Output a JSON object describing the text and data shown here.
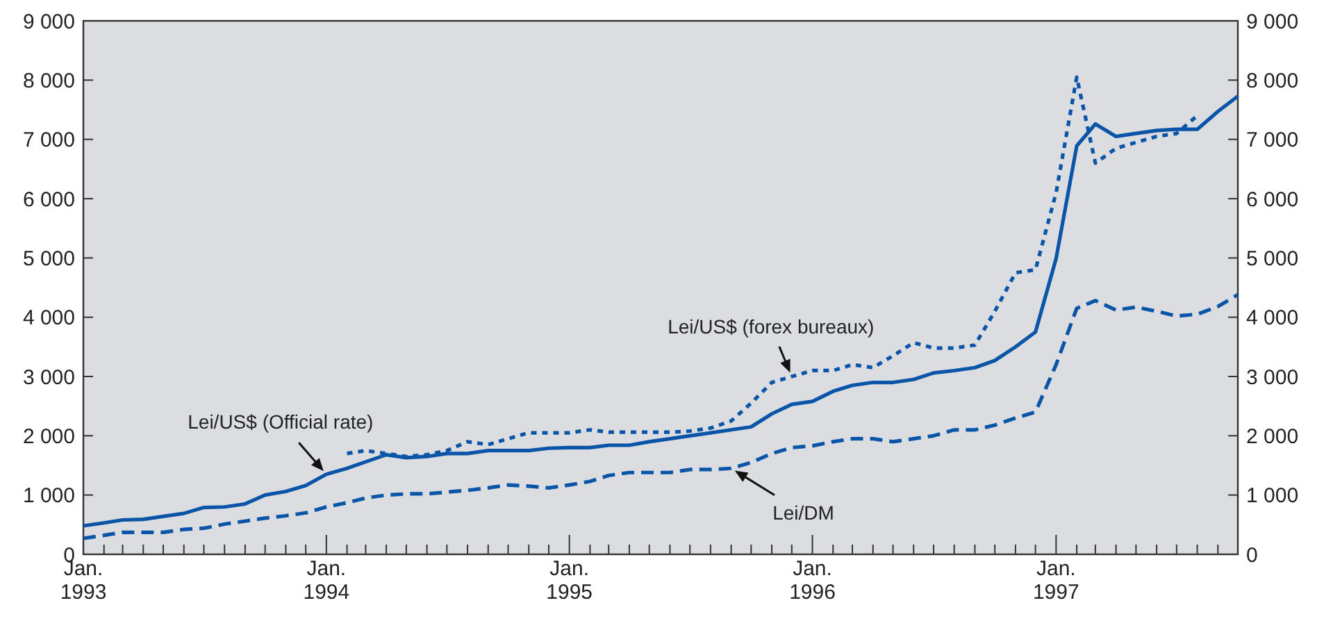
{
  "chart_data": {
    "type": "line",
    "x": [
      "1993-01",
      "1993-02",
      "1993-03",
      "1993-04",
      "1993-05",
      "1993-06",
      "1993-07",
      "1993-08",
      "1993-09",
      "1993-10",
      "1993-11",
      "1993-12",
      "1994-01",
      "1994-02",
      "1994-03",
      "1994-04",
      "1994-05",
      "1994-06",
      "1994-07",
      "1994-08",
      "1994-09",
      "1994-10",
      "1994-11",
      "1994-12",
      "1995-01",
      "1995-02",
      "1995-03",
      "1995-04",
      "1995-05",
      "1995-06",
      "1995-07",
      "1995-08",
      "1995-09",
      "1995-10",
      "1995-11",
      "1995-12",
      "1996-01",
      "1996-02",
      "1996-03",
      "1996-04",
      "1996-05",
      "1996-06",
      "1996-07",
      "1996-08",
      "1996-09",
      "1996-10",
      "1996-11",
      "1996-12",
      "1997-01",
      "1997-02",
      "1997-03",
      "1997-04",
      "1997-05",
      "1997-06",
      "1997-07",
      "1997-08",
      "1997-09",
      "1997-10"
    ],
    "series": [
      {
        "color": "#0a55a8",
        "line_style": "solid",
        "values": [
          480,
          530,
          580,
          590,
          640,
          690,
          790,
          800,
          850,
          1000,
          1060,
          1160,
          1350,
          1450,
          1560,
          1680,
          1630,
          1650,
          1700,
          1700,
          1750,
          1750,
          1750,
          1790,
          1800,
          1800,
          1840,
          1840,
          1900,
          1950,
          2000,
          2050,
          2100,
          2150,
          2370,
          2530,
          2580,
          2750,
          2850,
          2900,
          2900,
          2950,
          3060,
          3100,
          3150,
          3270,
          3500,
          3750,
          4990,
          6890,
          7260,
          7050,
          7100,
          7150,
          7170,
          7170,
          7470,
          7730
        ]
      },
      {
        "color": "#0a55a8",
        "line_style": "dotted",
        "values": [
          null,
          null,
          null,
          null,
          null,
          null,
          null,
          null,
          null,
          null,
          null,
          null,
          null,
          1700,
          1750,
          1700,
          1650,
          1680,
          1750,
          1900,
          1850,
          1950,
          2050,
          2050,
          2050,
          2100,
          2060,
          2060,
          2060,
          2060,
          2080,
          2130,
          2250,
          2550,
          2900,
          3000,
          3100,
          3100,
          3200,
          3150,
          3350,
          3570,
          3480,
          3480,
          3530,
          4100,
          4750,
          4800,
          6100,
          8050,
          6600,
          6850,
          6950,
          7050,
          7100,
          7400,
          null,
          null
        ]
      },
      {
        "color": "#0a55a8",
        "line_style": "dashed",
        "values": [
          270,
          320,
          370,
          370,
          370,
          420,
          440,
          510,
          560,
          610,
          650,
          700,
          800,
          870,
          950,
          1000,
          1020,
          1020,
          1050,
          1080,
          1120,
          1170,
          1150,
          1120,
          1170,
          1230,
          1330,
          1380,
          1380,
          1380,
          1430,
          1430,
          1450,
          1550,
          1700,
          1800,
          1830,
          1900,
          1950,
          1950,
          1900,
          1950,
          2000,
          2100,
          2100,
          2180,
          2300,
          2400,
          3200,
          4150,
          4280,
          4120,
          4170,
          4100,
          4020,
          4050,
          4180,
          4380
        ]
      }
    ],
    "xlim": [
      "1993-01",
      "1997-10"
    ],
    "xticks": [
      {
        "value": "1993-01",
        "label": "Jan.\n1993"
      },
      {
        "value": "1993-02",
        "label": null
      },
      {
        "value": "1993-03",
        "label": null
      },
      {
        "value": "1993-04",
        "label": null
      },
      {
        "value": "1993-05",
        "label": null
      },
      {
        "value": "1993-06",
        "label": null
      },
      {
        "value": "1993-07",
        "label": null
      },
      {
        "value": "1993-08",
        "label": null
      },
      {
        "value": "1993-09",
        "label": null
      },
      {
        "value": "1993-10",
        "label": null
      },
      {
        "value": "1993-11",
        "label": null
      },
      {
        "value": "1993-12",
        "label": null
      },
      {
        "value": "1994-01",
        "label": "Jan.\n1994"
      },
      {
        "value": "1994-02",
        "label": null
      },
      {
        "value": "1994-03",
        "label": null
      },
      {
        "value": "1994-04",
        "label": null
      },
      {
        "value": "1994-05",
        "label": null
      },
      {
        "value": "1994-06",
        "label": null
      },
      {
        "value": "1994-07",
        "label": null
      },
      {
        "value": "1994-08",
        "label": null
      },
      {
        "value": "1994-09",
        "label": null
      },
      {
        "value": "1994-10",
        "label": null
      },
      {
        "value": "1994-11",
        "label": null
      },
      {
        "value": "1994-12",
        "label": null
      },
      {
        "value": "1995-01",
        "label": "Jan.\n1995"
      },
      {
        "value": "1995-02",
        "label": null
      },
      {
        "value": "1995-03",
        "label": null
      },
      {
        "value": "1995-04",
        "label": null
      },
      {
        "value": "1995-05",
        "label": null
      },
      {
        "value": "1995-06",
        "label": null
      },
      {
        "value": "1995-07",
        "label": null
      },
      {
        "value": "1995-08",
        "label": null
      },
      {
        "value": "1995-09",
        "label": null
      },
      {
        "value": "1995-10",
        "label": null
      },
      {
        "value": "1995-11",
        "label": null
      },
      {
        "value": "1995-12",
        "label": null
      },
      {
        "value": "1996-01",
        "label": "Jan.\n1996"
      },
      {
        "value": "1996-02",
        "label": null
      },
      {
        "value": "1996-03",
        "label": null
      },
      {
        "value": "1996-04",
        "label": null
      },
      {
        "value": "1996-05",
        "label": null
      },
      {
        "value": "1996-06",
        "label": null
      },
      {
        "value": "1996-07",
        "label": null
      },
      {
        "value": "1996-08",
        "label": null
      },
      {
        "value": "1996-09",
        "label": null
      },
      {
        "value": "1996-10",
        "label": null
      },
      {
        "value": "1996-11",
        "label": null
      },
      {
        "value": "1996-12",
        "label": null
      },
      {
        "value": "1997-01",
        "label": "Jan.\n1997"
      },
      {
        "value": "1997-02",
        "label": null
      },
      {
        "value": "1997-03",
        "label": null
      },
      {
        "value": "1997-04",
        "label": null
      },
      {
        "value": "1997-05",
        "label": null
      },
      {
        "value": "1997-06",
        "label": null
      },
      {
        "value": "1997-07",
        "label": null
      },
      {
        "value": "1997-08",
        "label": null
      },
      {
        "value": "1997-09",
        "label": null
      }
    ],
    "ylim": [
      0,
      9000
    ],
    "yticks": [
      0,
      {
        "value": 1000,
        "label": "1 000"
      },
      {
        "value": 2000,
        "label": "2 000"
      },
      {
        "value": 3000,
        "label": "3 000"
      },
      {
        "value": 4000,
        "label": "4 000"
      },
      {
        "value": 5000,
        "label": "5 000"
      },
      {
        "value": 6000,
        "label": "6 000"
      },
      {
        "value": 7000,
        "label": "7 000"
      },
      {
        "value": 8000,
        "label": "8 000"
      },
      {
        "value": 9000,
        "label": "9 000"
      }
    ],
    "y2lim": [
      0,
      9000
    ],
    "y2ticks": [
      0,
      {
        "value": 1000,
        "label": "1 000"
      },
      {
        "value": 2000,
        "label": "2 000"
      },
      {
        "value": 3000,
        "label": "3 000"
      },
      {
        "value": 4000,
        "label": "4 000"
      },
      {
        "value": 5000,
        "label": "5 000"
      },
      {
        "value": 6000,
        "label": "6 000"
      },
      {
        "value": 7000,
        "label": "7 000"
      },
      {
        "value": 8000,
        "label": "8 000"
      },
      {
        "value": 9000,
        "label": "9 000"
      }
    ],
    "annotations": [
      {
        "text": "Lei/US$ (Official rate)",
        "x": "1994-01",
        "y": 1350
      },
      {
        "text": "Lei/US$ (forex bureaux)",
        "x": "1995-12",
        "y": 3000
      },
      {
        "text": "Lei/DM",
        "x": "1995-09",
        "y": 1450
      }
    ],
    "grid": false,
    "marker": "none"
  }
}
